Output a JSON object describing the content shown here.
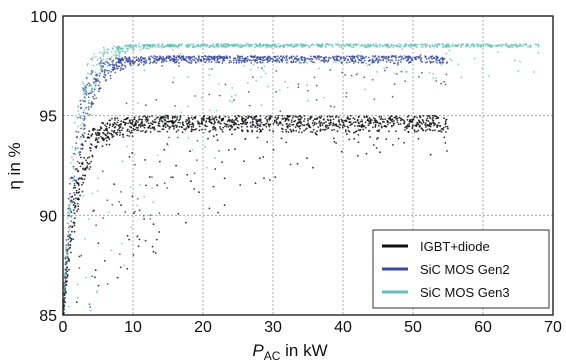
{
  "chart_data": {
    "type": "scatter",
    "xlabel_main": "P",
    "xlabel_sub": "AC",
    "xlabel_rest": " in kW",
    "ylabel": "η in %",
    "xlim": [
      0,
      70
    ],
    "ylim": [
      85,
      100
    ],
    "x_ticks": [
      "0",
      "10",
      "20",
      "30",
      "40",
      "50",
      "60",
      "70"
    ],
    "y_ticks": [
      "85",
      "90",
      "95",
      "100"
    ],
    "grid": true,
    "legend_position": "bottom-right",
    "series": [
      {
        "name": "IGBT+diode",
        "color": "#111111",
        "plateau": 95.0,
        "spread": 1.4,
        "xmax": 55,
        "count": 1400
      },
      {
        "name": "SiC MOS Gen2",
        "color": "#3a4aa0",
        "plateau": 98.0,
        "spread": 0.6,
        "xmax": 55,
        "count": 1100
      },
      {
        "name": "SiC MOS Gen3",
        "color": "#5fc2b4",
        "plateau": 98.6,
        "spread": 0.3,
        "xmax": 68,
        "count": 1000
      }
    ]
  }
}
